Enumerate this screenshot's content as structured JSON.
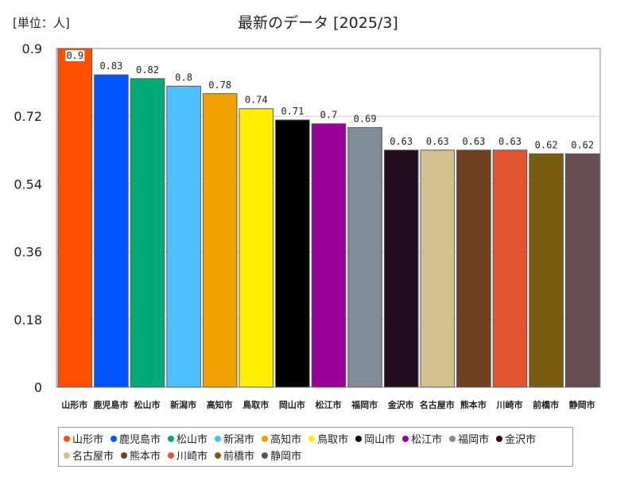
{
  "chart_data": {
    "type": "bar",
    "title": "最新のデータ [2025/3]",
    "unit_label": "[単位：人]",
    "categories": [
      "山形市",
      "鹿児島市",
      "松山市",
      "新潟市",
      "高知市",
      "鳥取市",
      "岡山市",
      "松江市",
      "福岡市",
      "金沢市",
      "名古屋市",
      "熊本市",
      "川崎市",
      "前橋市",
      "静岡市"
    ],
    "values": [
      0.9,
      0.83,
      0.82,
      0.8,
      0.78,
      0.74,
      0.71,
      0.7,
      0.69,
      0.63,
      0.63,
      0.63,
      0.63,
      0.62,
      0.62
    ],
    "value_labels": [
      "0.9",
      "0.83",
      "0.82",
      "0.8",
      "0.78",
      "0.74",
      "0.71",
      "0.7",
      "0.69",
      "0.63",
      "0.63",
      "0.63",
      "0.63",
      "0.62",
      "0.62"
    ],
    "colors": [
      "#ff4f00",
      "#0055ff",
      "#00aa77",
      "#4dbfff",
      "#f0a000",
      "#ffee00",
      "#000000",
      "#990099",
      "#808c96",
      "#220c1e",
      "#d2c08e",
      "#6e4020",
      "#e05530",
      "#7a5c10",
      "#684e52"
    ],
    "yticks": [
      "0",
      "0.18",
      "0.36",
      "0.54",
      "0.72",
      "0.9"
    ],
    "ylim": [
      0,
      0.9
    ],
    "grid": true,
    "legend_position": "bottom"
  }
}
